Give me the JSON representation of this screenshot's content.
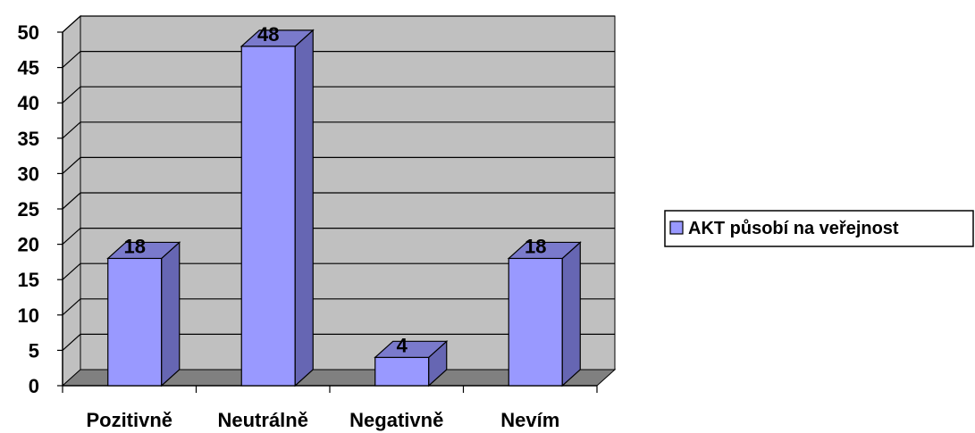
{
  "chart_data": {
    "type": "bar",
    "categories": [
      "Pozitivně",
      "Neutrálně",
      "Negativně",
      "Nevím"
    ],
    "series": [
      {
        "name": "AKT působí na veřejnost",
        "values": [
          18,
          48,
          4,
          18
        ]
      }
    ],
    "data_labels": [
      "18",
      "48",
      "4",
      "18"
    ],
    "y_ticks": [
      "0",
      "5",
      "10",
      "15",
      "20",
      "25",
      "30",
      "35",
      "40",
      "45",
      "50"
    ],
    "ylim": [
      0,
      50
    ],
    "grid": true,
    "style_3d": true,
    "legend_position": "right",
    "colors": {
      "bar_front": "#9999ff",
      "bar_side": "#6666b3",
      "bar_top": "#7a7acc",
      "wall": "#c0c0c0",
      "floor": "#808080",
      "outline": "#000000"
    }
  }
}
